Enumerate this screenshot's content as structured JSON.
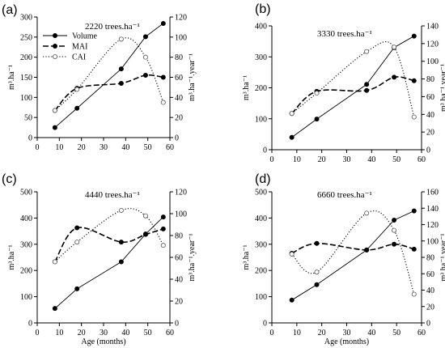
{
  "chart_data": [
    {
      "type": "line",
      "panel_label": "(a)",
      "title": "2220 trees.ha⁻¹",
      "xlabel": "",
      "ylabel_left": "m³.ha⁻¹",
      "ylabel_right": "m³.ha⁻¹.year⁻¹",
      "xlim": [
        0,
        60
      ],
      "ylim_left": [
        0,
        300
      ],
      "ylim_right": [
        0,
        120
      ],
      "x_ticks": [
        "0",
        "10",
        "20",
        "30",
        "40",
        "50",
        "60"
      ],
      "yleft_ticks": [
        "0",
        "50",
        "100",
        "150",
        "200",
        "250",
        "300"
      ],
      "yright_ticks": [
        "0",
        "20",
        "40",
        "60",
        "80",
        "100",
        "120"
      ],
      "legend": true,
      "legend_position": "top-left",
      "series": [
        {
          "name": "Volume",
          "axis": "left",
          "style": "solid",
          "marker": "filled-circle",
          "x": [
            8,
            18,
            38,
            49,
            57
          ],
          "values": [
            25,
            73,
            171,
            251,
            284
          ]
        },
        {
          "name": "MAI",
          "axis": "right",
          "style": "dashed",
          "marker": "filled-circle",
          "x": [
            8,
            18,
            38,
            49,
            57
          ],
          "values": [
            27,
            49,
            54,
            62,
            60
          ]
        },
        {
          "name": "CAI",
          "axis": "right",
          "style": "dotted",
          "marker": "open-circle",
          "x": [
            8,
            18,
            38,
            49,
            57
          ],
          "values": [
            27,
            48,
            98,
            80,
            35
          ]
        }
      ]
    },
    {
      "type": "line",
      "panel_label": "(b)",
      "title": "3330 trees.ha⁻¹",
      "xlabel": "",
      "ylabel_left": "m³.ha⁻¹",
      "ylabel_right": "m³.ha⁻¹.year⁻¹",
      "xlim": [
        0,
        60
      ],
      "ylim_left": [
        0,
        400
      ],
      "ylim_right": [
        0,
        140
      ],
      "x_ticks": [
        "0",
        "10",
        "20",
        "30",
        "40",
        "50",
        "60"
      ],
      "yleft_ticks": [
        "0",
        "100",
        "200",
        "300",
        "400"
      ],
      "yright_ticks": [
        "0",
        "20",
        "40",
        "60",
        "80",
        "100",
        "120",
        "140"
      ],
      "legend": false,
      "series": [
        {
          "name": "Volume",
          "axis": "left",
          "style": "solid",
          "marker": "filled-circle",
          "x": [
            8,
            18,
            38,
            49,
            57
          ],
          "values": [
            40,
            99,
            211,
            330,
            367
          ]
        },
        {
          "name": "MAI",
          "axis": "right",
          "style": "dashed",
          "marker": "filled-circle",
          "x": [
            8,
            18,
            38,
            49,
            57
          ],
          "values": [
            41,
            66,
            67,
            82,
            78
          ]
        },
        {
          "name": "CAI",
          "axis": "right",
          "style": "dotted",
          "marker": "open-circle",
          "x": [
            8,
            18,
            38,
            49,
            57
          ],
          "values": [
            41,
            64,
            111,
            116,
            37
          ]
        }
      ]
    },
    {
      "type": "line",
      "panel_label": "(c)",
      "title": "4440 trees.ha⁻¹",
      "xlabel": "Age (months)",
      "ylabel_left": "m³.ha⁻¹",
      "ylabel_right": "m³.ha⁻¹.year⁻¹",
      "xlim": [
        0,
        60
      ],
      "ylim_left": [
        0,
        500
      ],
      "ylim_right": [
        0,
        120
      ],
      "x_ticks": [
        "0",
        "10",
        "20",
        "30",
        "40",
        "50",
        "60"
      ],
      "yleft_ticks": [
        "0",
        "100",
        "200",
        "300",
        "400",
        "500"
      ],
      "yright_ticks": [
        "0",
        "20",
        "40",
        "60",
        "80",
        "100",
        "120"
      ],
      "legend": false,
      "series": [
        {
          "name": "Volume",
          "axis": "left",
          "style": "solid",
          "marker": "filled-circle",
          "x": [
            8,
            18,
            38,
            49,
            57
          ],
          "values": [
            55,
            130,
            233,
            339,
            404
          ]
        },
        {
          "name": "MAI",
          "axis": "right",
          "style": "dashed",
          "marker": "filled-circle",
          "x": [
            8,
            18,
            38,
            49,
            57
          ],
          "values": [
            56,
            87,
            74,
            81,
            86
          ]
        },
        {
          "name": "CAI",
          "axis": "right",
          "style": "dotted",
          "marker": "open-circle",
          "x": [
            8,
            18,
            38,
            49,
            57
          ],
          "values": [
            56,
            74,
            103,
            98,
            71
          ]
        }
      ]
    },
    {
      "type": "line",
      "panel_label": "(d)",
      "title": "6660 trees.ha⁻¹",
      "xlabel": "Age (months)",
      "ylabel_left": "m³.ha⁻¹",
      "ylabel_right": "m³.ha⁻¹.year⁻¹",
      "xlim": [
        0,
        60
      ],
      "ylim_left": [
        0,
        500
      ],
      "ylim_right": [
        0,
        160
      ],
      "x_ticks": [
        "0",
        "10",
        "20",
        "30",
        "40",
        "50",
        "60"
      ],
      "yleft_ticks": [
        "0",
        "100",
        "200",
        "300",
        "400",
        "500"
      ],
      "yright_ticks": [
        "0",
        "20",
        "40",
        "60",
        "80",
        "100",
        "120",
        "140",
        "160"
      ],
      "legend": false,
      "series": [
        {
          "name": "Volume",
          "axis": "left",
          "style": "solid",
          "marker": "filled-circle",
          "x": [
            8,
            18,
            38,
            49,
            57
          ],
          "values": [
            87,
            146,
            278,
            392,
            427
          ]
        },
        {
          "name": "MAI",
          "axis": "right",
          "style": "dashed",
          "marker": "filled-circle",
          "x": [
            8,
            18,
            38,
            49,
            57
          ],
          "values": [
            85,
            97,
            89,
            96,
            90
          ]
        },
        {
          "name": "CAI",
          "axis": "right",
          "style": "dotted",
          "marker": "open-circle",
          "x": [
            8,
            18,
            38,
            49,
            57
          ],
          "values": [
            84,
            62,
            134,
            113,
            35
          ]
        }
      ]
    }
  ]
}
